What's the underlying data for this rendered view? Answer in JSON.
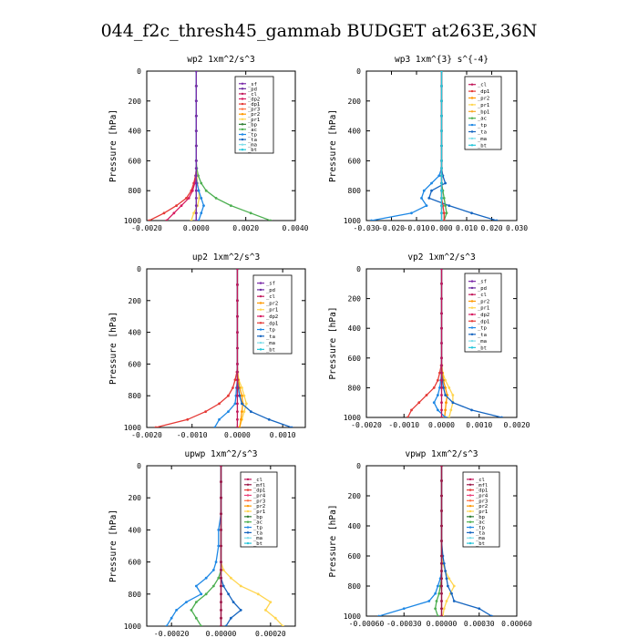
{
  "title": "044_f2c_thresh45_gammab  BUDGET at263E,36N",
  "colors": {
    "sf": "#7a2aa8",
    "pd": "#6a2aa0",
    "cl": "#c2185b",
    "dp2": "#d81b60",
    "dp1": "#e53935",
    "pr3": "#ff7043",
    "pr2": "#ff9800",
    "pr1": "#ffd54f",
    "pr4": "#ec407a",
    "mfl": "#9c1b4a",
    "bp1": "#f9a825",
    "bp": "#2e7d32",
    "ac": "#4caf50",
    "tp": "#1e88e5",
    "ta": "#1565c0",
    "ma": "#80deea",
    "bt": "#26c6da",
    "dp": "#43a047"
  },
  "chart_data": [
    {
      "type": "line",
      "title": "wp2   1xm^2/s^3",
      "ylabel": "Pressure [hPa]",
      "xlim": [
        -0.002,
        0.004
      ],
      "ylim": [
        1000,
        0
      ],
      "xticks": [
        "-0.0020",
        "0.0000",
        "0.0020",
        "0.0040"
      ],
      "xtick_values": [
        -0.002,
        0.0,
        0.002,
        0.004
      ],
      "yticks": [
        0,
        200,
        400,
        600,
        800,
        1000
      ],
      "legend": [
        "_sf",
        "_pd",
        "_cl",
        "_dp2",
        "_dp1",
        "_pr3",
        "_pr2",
        "_pr1",
        "_bp",
        "_ac",
        "_tp",
        "_ta",
        "_ma",
        "_bt"
      ],
      "legend_keys": [
        "sf",
        "pd",
        "cl",
        "dp2",
        "dp1",
        "pr3",
        "pr2",
        "pr1",
        "bp",
        "ac",
        "tp",
        "ta",
        "ma",
        "bt"
      ],
      "legend_position": "top-right",
      "pressure": [
        0,
        100,
        200,
        300,
        400,
        500,
        600,
        650,
        700,
        750,
        800,
        850,
        900,
        950,
        1000
      ],
      "series": [
        {
          "key": "dp1",
          "values": [
            0,
            0,
            0,
            0,
            0,
            0,
            0,
            0,
            -3e-05,
            -0.0001,
            -0.0002,
            -0.0004,
            -0.0008,
            -0.0013,
            -0.0019
          ]
        },
        {
          "key": "dp2",
          "values": [
            0,
            0,
            0,
            0,
            0,
            0,
            0,
            0,
            -2e-05,
            -6e-05,
            -0.00015,
            -0.0003,
            -0.0006,
            -0.0009,
            -0.0012
          ]
        },
        {
          "key": "ac",
          "values": [
            0,
            0,
            0,
            0,
            0,
            0,
            0,
            2e-05,
            8e-05,
            0.0002,
            0.0004,
            0.0008,
            0.0014,
            0.0022,
            0.003
          ]
        },
        {
          "key": "pr1",
          "values": [
            0,
            0,
            0,
            0,
            0,
            0,
            0,
            0,
            2e-05,
            5e-05,
            0.0001,
            0.00012,
            5e-05,
            -0.0001,
            -0.0002
          ]
        },
        {
          "key": "tp",
          "values": [
            0,
            0,
            0,
            0,
            0,
            0,
            0,
            0,
            -1e-05,
            3e-05,
            0.0001,
            0.0002,
            0.0003,
            0.0002,
            0.0001
          ]
        },
        {
          "key": "bt",
          "values": [
            0,
            0,
            0,
            0,
            0,
            0,
            0,
            0,
            0,
            0,
            0,
            0,
            0,
            0,
            0
          ]
        },
        {
          "key": "sf",
          "values": [
            0,
            0,
            0,
            0,
            0,
            0,
            0,
            0,
            0,
            0,
            0,
            0,
            0,
            0,
            0
          ]
        }
      ]
    },
    {
      "type": "line",
      "title": "wp3   1xm^{3} s^{-4}",
      "ylabel": "Pressure [hPa]",
      "xlim": [
        -0.03,
        0.03
      ],
      "ylim": [
        1000,
        0
      ],
      "xticks": [
        "-0.030",
        "-0.020",
        "-0.010",
        "0.000",
        "0.010",
        "0.020",
        "0.030"
      ],
      "xtick_values": [
        -0.03,
        -0.02,
        -0.01,
        0.0,
        0.01,
        0.02,
        0.03
      ],
      "yticks": [
        0,
        200,
        400,
        600,
        800,
        1000
      ],
      "legend": [
        "_cl",
        "_dp1",
        "_pr2",
        "_pr1",
        "_bp1",
        "_ac",
        "_tp",
        "_ta",
        "_ma",
        "_bt"
      ],
      "legend_keys": [
        "cl",
        "dp1",
        "pr2",
        "pr1",
        "bp1",
        "ac",
        "tp",
        "ta",
        "ma",
        "bt"
      ],
      "legend_position": "top-right",
      "pressure": [
        0,
        100,
        200,
        300,
        400,
        500,
        600,
        650,
        700,
        750,
        800,
        850,
        900,
        950,
        1000
      ],
      "series": [
        {
          "key": "tp",
          "values": [
            0,
            0,
            0,
            0,
            0,
            0,
            0,
            0,
            -0.001,
            -0.004,
            -0.007,
            -0.008,
            -0.006,
            -0.012,
            -0.028
          ]
        },
        {
          "key": "ta",
          "values": [
            0,
            0,
            0,
            0,
            0,
            0,
            0,
            0,
            0.0005,
            0.0015,
            -0.004,
            -0.005,
            0.003,
            0.012,
            0.022
          ]
        },
        {
          "key": "ac",
          "values": [
            0,
            0,
            0,
            0,
            0,
            0,
            0,
            0,
            0,
            0,
            0.0005,
            0.001,
            0.0015,
            0.002,
            0.001
          ]
        },
        {
          "key": "cl",
          "values": [
            0,
            0,
            0,
            0,
            0,
            0,
            0,
            0,
            0,
            0,
            0,
            0,
            0,
            0,
            0
          ]
        },
        {
          "key": "dp1",
          "values": [
            0,
            0,
            0,
            0,
            0,
            0,
            0,
            0,
            0,
            0,
            0,
            0,
            0.0005,
            0.001,
            0.001
          ]
        },
        {
          "key": "bt",
          "values": [
            0,
            0,
            0,
            0,
            0,
            0,
            0,
            0,
            0,
            0,
            0,
            0,
            0,
            0,
            0
          ]
        }
      ]
    },
    {
      "type": "line",
      "title": "up2   1xm^2/s^3",
      "ylabel": "Pressure [hPa]",
      "xlim": [
        -0.002,
        0.0015
      ],
      "ylim": [
        1000,
        0
      ],
      "xticks": [
        "-0.0020",
        "-0.0010",
        "0.0000",
        "0.0010"
      ],
      "xtick_values": [
        -0.002,
        -0.001,
        0.0,
        0.001
      ],
      "yticks": [
        0,
        200,
        400,
        600,
        800,
        1000
      ],
      "legend": [
        "_sf",
        "_pd",
        "_cl",
        "_pr2",
        "_pr1",
        "_dp2",
        "_dp1",
        "_tp",
        "_ta",
        "_ma",
        "_bt"
      ],
      "legend_keys": [
        "sf",
        "pd",
        "cl",
        "pr2",
        "pr1",
        "dp2",
        "dp1",
        "tp",
        "ta",
        "ma",
        "bt"
      ],
      "legend_position": "top-right",
      "pressure": [
        0,
        100,
        200,
        300,
        400,
        500,
        600,
        650,
        700,
        750,
        800,
        850,
        900,
        950,
        1000
      ],
      "series": [
        {
          "key": "dp1",
          "values": [
            0,
            0,
            0,
            0,
            0,
            0,
            0,
            -1e-05,
            -5e-05,
            -0.0001,
            -0.0002,
            -0.0004,
            -0.0007,
            -0.0011,
            -0.0018
          ]
        },
        {
          "key": "pr1",
          "values": [
            0,
            0,
            0,
            0,
            0,
            0,
            0,
            1e-05,
            3e-05,
            0.0001,
            0.00015,
            0.0002,
            0.00015,
            0.0001,
            5e-05
          ]
        },
        {
          "key": "pr2",
          "values": [
            0,
            0,
            0,
            0,
            0,
            0,
            0,
            0,
            2e-05,
            5e-05,
            0.0001,
            0.00012,
            0.0001,
            8e-05,
            5e-05
          ]
        },
        {
          "key": "ta",
          "values": [
            0,
            0,
            0,
            0,
            0,
            0,
            0,
            0,
            0,
            2e-05,
            5e-05,
            0.0001,
            0.0003,
            0.0007,
            0.0012
          ]
        },
        {
          "key": "tp",
          "values": [
            0,
            0,
            0,
            0,
            0,
            0,
            0,
            0,
            0,
            -2e-05,
            -3e-05,
            -5e-05,
            -0.0002,
            -0.0004,
            -0.0005
          ]
        },
        {
          "key": "cl",
          "values": [
            0,
            0,
            0,
            0,
            0,
            0,
            0,
            0,
            0,
            0,
            0,
            0,
            0,
            0,
            0
          ]
        }
      ]
    },
    {
      "type": "line",
      "title": "vp2   1xm^2/s^3",
      "ylabel": "Pressure [hPa]",
      "xlim": [
        -0.002,
        0.002
      ],
      "ylim": [
        1000,
        0
      ],
      "xticks": [
        "-0.0020",
        "-0.0010",
        "0.0000",
        "0.0010",
        "0.0020"
      ],
      "xtick_values": [
        -0.002,
        -0.001,
        0.0,
        0.001,
        0.002
      ],
      "yticks": [
        0,
        200,
        400,
        600,
        800,
        1000
      ],
      "legend": [
        "_sf",
        "_pd",
        "_cl",
        "_pr2",
        "_pr1",
        "_dp2",
        "_dp1",
        "_tp",
        "_ta",
        "_ma",
        "_bt"
      ],
      "legend_keys": [
        "sf",
        "pd",
        "cl",
        "pr2",
        "pr1",
        "dp2",
        "dp1",
        "tp",
        "ta",
        "ma",
        "bt"
      ],
      "legend_position": "top-right",
      "pressure": [
        0,
        100,
        200,
        300,
        400,
        500,
        600,
        650,
        700,
        750,
        800,
        850,
        900,
        950,
        1000
      ],
      "series": [
        {
          "key": "dp1",
          "values": [
            0,
            0,
            0,
            0,
            0,
            0,
            0,
            -1e-05,
            -5e-05,
            -0.0001,
            -0.0002,
            -0.0004,
            -0.0006,
            -0.0008,
            -0.0009
          ]
        },
        {
          "key": "pr1",
          "values": [
            0,
            0,
            0,
            0,
            0,
            0,
            0,
            1e-05,
            3e-05,
            0.0001,
            0.0002,
            0.0003,
            0.0003,
            0.00025,
            0.0002
          ]
        },
        {
          "key": "pr2",
          "values": [
            0,
            0,
            0,
            0,
            0,
            0,
            0,
            0,
            2e-05,
            5e-05,
            0.0001,
            0.00015,
            0.00012,
            0.0001,
            8e-05
          ]
        },
        {
          "key": "ta",
          "values": [
            0,
            0,
            0,
            0,
            0,
            0,
            0,
            0,
            0,
            2e-05,
            5e-05,
            0.0001,
            0.0003,
            0.0008,
            0.0016
          ]
        },
        {
          "key": "tp",
          "values": [
            0,
            0,
            0,
            0,
            0,
            0,
            0,
            0,
            0,
            -2e-05,
            -5e-05,
            -0.0001,
            -0.0002,
            -0.0001,
            0.0001
          ]
        },
        {
          "key": "cl",
          "values": [
            0,
            0,
            0,
            0,
            0,
            0,
            0,
            0,
            0,
            0,
            0,
            0,
            0,
            0,
            0
          ]
        }
      ]
    },
    {
      "type": "line",
      "title": "upwp   1xm^2/s^3",
      "ylabel": "Pressure [hPa]",
      "xlim": [
        -0.0003,
        0.0003
      ],
      "ylim": [
        1000,
        0
      ],
      "xticks": [
        "-0.00020",
        "0.00000",
        "0.00020"
      ],
      "xtick_values": [
        -0.0002,
        0.0,
        0.0002
      ],
      "yticks": [
        0,
        200,
        400,
        600,
        800,
        1000
      ],
      "legend": [
        "_cl",
        "_mfl",
        "_dp1",
        "_pr4",
        "_pr3",
        "_pr2",
        "_pr1",
        "_bp",
        "_ac",
        "_tp",
        "_ta",
        "_ma",
        "_bt"
      ],
      "legend_keys": [
        "cl",
        "mfl",
        "dp1",
        "pr4",
        "pr3",
        "pr2",
        "pr1",
        "bp",
        "ac",
        "tp",
        "ta",
        "ma",
        "bt"
      ],
      "legend_position": "top-right",
      "pressure": [
        0,
        100,
        200,
        300,
        400,
        500,
        600,
        650,
        700,
        750,
        800,
        850,
        900,
        950,
        1000
      ],
      "series": [
        {
          "key": "pr1",
          "values": [
            0,
            0,
            0,
            0,
            0,
            0,
            0,
            1e-05,
            4e-05,
            8e-05,
            0.00015,
            0.0002,
            0.00018,
            0.00022,
            0.00025
          ]
        },
        {
          "key": "tp",
          "values": [
            0,
            0,
            0,
            0,
            -1e-05,
            -1e-05,
            -2e-05,
            -3e-05,
            -6e-05,
            -0.0001,
            -8e-05,
            -0.00014,
            -0.00018,
            -0.0002,
            -0.00022
          ]
        },
        {
          "key": "ac",
          "values": [
            0,
            0,
            0,
            0,
            0,
            0,
            0,
            0,
            -1e-05,
            -3e-05,
            -6e-05,
            -0.0001,
            -0.00012,
            -0.0001,
            -8e-05
          ]
        },
        {
          "key": "ta",
          "values": [
            0,
            0,
            0,
            0,
            0,
            0,
            0,
            0,
            0,
            1e-05,
            3e-05,
            5e-05,
            8e-05,
            4e-05,
            2e-05
          ]
        },
        {
          "key": "cl",
          "values": [
            0,
            0,
            0,
            0,
            0,
            0,
            0,
            0,
            0,
            0,
            0,
            0,
            0,
            0,
            0
          ]
        },
        {
          "key": "mfl",
          "values": [
            0,
            0,
            0,
            0,
            0,
            0,
            0,
            0,
            0,
            0,
            0,
            0,
            0,
            0,
            0
          ]
        }
      ]
    },
    {
      "type": "line",
      "title": "vpwp   1xm^2/s^3",
      "ylabel": "Pressure [hPa]",
      "xlim": [
        -0.0006,
        0.0006
      ],
      "ylim": [
        1000,
        0
      ],
      "xticks": [
        "-0.00060",
        "-0.00030",
        "0.00000",
        "0.00030",
        "0.00060"
      ],
      "xtick_values": [
        -0.0006,
        -0.0003,
        0.0,
        0.0003,
        0.0006
      ],
      "yticks": [
        0,
        200,
        400,
        600,
        800,
        1000
      ],
      "legend": [
        "_cl",
        "_mfl",
        "_dp1",
        "_pr4",
        "_pr3",
        "_pr2",
        "_pr1",
        "_bp",
        "_ac",
        "_tp",
        "_ta",
        "_ma",
        "_bt"
      ],
      "legend_keys": [
        "cl",
        "mfl",
        "dp1",
        "pr4",
        "pr3",
        "pr2",
        "pr1",
        "bp",
        "ac",
        "tp",
        "ta",
        "ma",
        "bt"
      ],
      "legend_position": "top-right",
      "pressure": [
        0,
        100,
        200,
        300,
        400,
        500,
        600,
        650,
        700,
        750,
        800,
        850,
        900,
        950,
        1000
      ],
      "series": [
        {
          "key": "pr1",
          "values": [
            0,
            0,
            0,
            0,
            0,
            0,
            0,
            1e-05,
            3e-05,
            6e-05,
            0.0001,
            7e-05,
            4e-05,
            2e-05,
            1e-05
          ]
        },
        {
          "key": "tp",
          "values": [
            0,
            0,
            0,
            0,
            0,
            0,
            0,
            0,
            0,
            -1e-05,
            -3e-05,
            -5e-05,
            -0.0001,
            -0.0003,
            -0.0005
          ]
        },
        {
          "key": "ta",
          "values": [
            0,
            0,
            0,
            0,
            0,
            0,
            1e-05,
            2e-05,
            3e-05,
            4e-05,
            5e-05,
            8e-05,
            0.0001,
            0.0003,
            0.0004
          ]
        },
        {
          "key": "ac",
          "values": [
            0,
            0,
            0,
            0,
            0,
            0,
            0,
            0,
            0,
            0,
            -1e-05,
            -2e-05,
            -4e-05,
            -5e-05,
            -3e-05
          ]
        },
        {
          "key": "cl",
          "values": [
            0,
            0,
            0,
            0,
            0,
            0,
            0,
            0,
            0,
            0,
            0,
            0,
            0,
            0,
            0
          ]
        },
        {
          "key": "mfl",
          "values": [
            0,
            0,
            0,
            0,
            0,
            0,
            0,
            0,
            0,
            0,
            0,
            0,
            0,
            0,
            0
          ]
        }
      ]
    }
  ]
}
